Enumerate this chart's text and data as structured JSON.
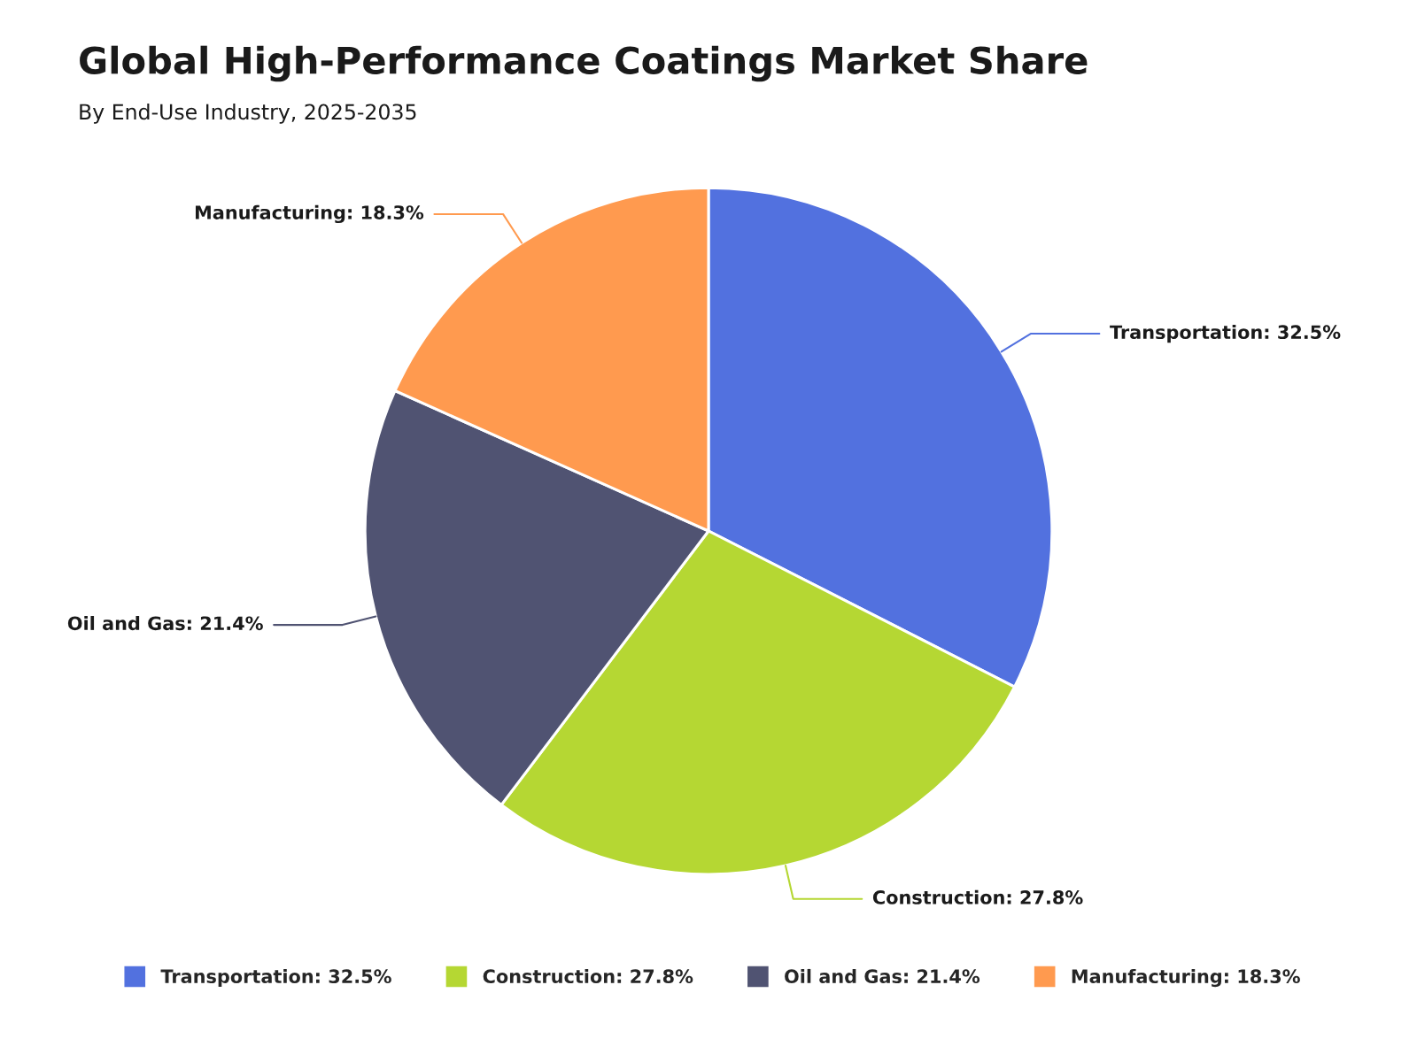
{
  "chart_data": {
    "type": "pie",
    "title": "Global High-Performance Coatings Market Share",
    "subtitle": "By End-Use Industry, 2025-2035",
    "categories": [
      "Transportation",
      "Construction",
      "Oil and Gas",
      "Manufacturing"
    ],
    "values": [
      32.5,
      27.8,
      21.4,
      18.3
    ],
    "value_labels": [
      "32.5%",
      "27.8%",
      "21.4%",
      "18.3%"
    ],
    "colors": [
      "#5271df",
      "#b5d733",
      "#505372",
      "#ff9a4f"
    ],
    "legend": "bottom"
  }
}
